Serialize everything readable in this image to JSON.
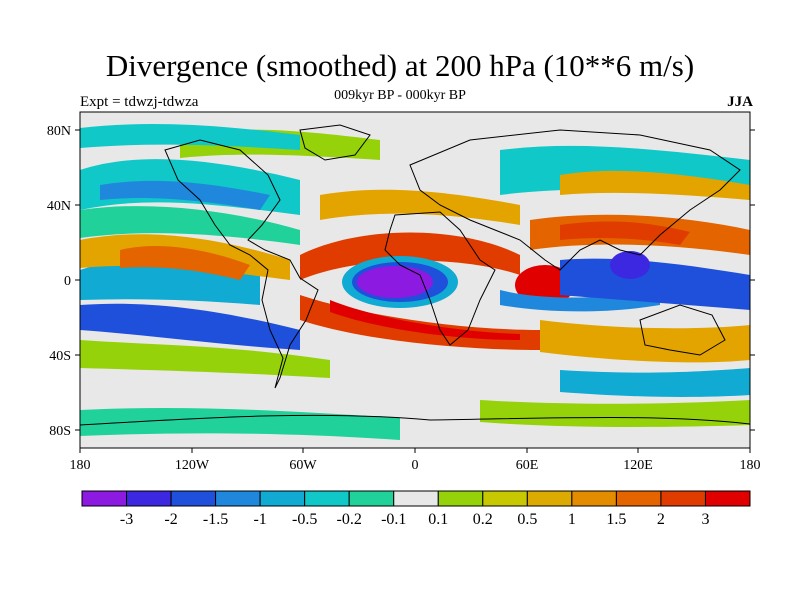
{
  "title": "Divergence (smoothed) at 200 hPa (10**6 m/s)",
  "subtitle": "009kyr BP - 000kyr BP",
  "left_label": "Expt = tdwzj-tdwza",
  "right_label": "JJA",
  "lat_ticks": [
    "80N",
    "40N",
    "0",
    "40S",
    "80S"
  ],
  "lon_ticks": [
    "180",
    "120W",
    "60W",
    "0",
    "60E",
    "120E",
    "180"
  ],
  "colorbar": {
    "colors": [
      "#8c1ae0",
      "#3c28e0",
      "#1e50dc",
      "#1f88dc",
      "#10aad2",
      "#10c8c8",
      "#20d29a",
      "#e8e8e8",
      "#96d20a",
      "#c8c800",
      "#dcaa00",
      "#e48c00",
      "#e46400",
      "#e03c00",
      "#e00000"
    ],
    "labels": [
      "-3",
      "-2",
      "-1.5",
      "-1",
      "-0.5",
      "-0.2",
      "-0.1",
      "0.1",
      "0.2",
      "0.5",
      "1",
      "1.5",
      "2",
      "3"
    ]
  }
}
